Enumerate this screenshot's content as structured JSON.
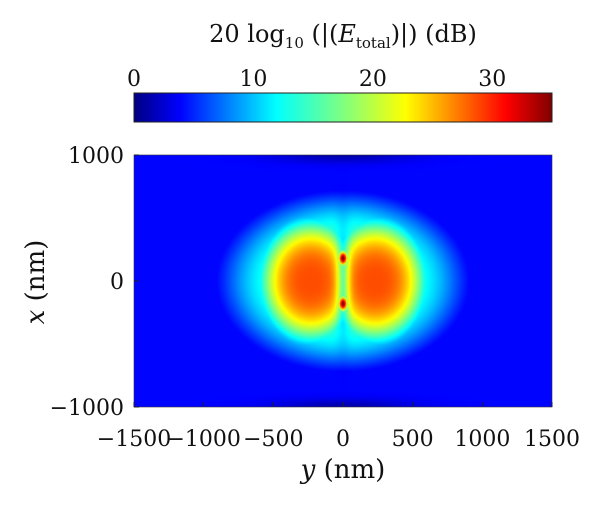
{
  "chart_data": {
    "type": "heatmap",
    "title": "",
    "colorbar": {
      "label": {
        "prefix": "20 log",
        "sub10": "10",
        "mid": " (|(",
        "E": "E",
        "total": "total",
        "suffix": ")|) (dB)"
      },
      "ticks": [
        0,
        10,
        20,
        30
      ],
      "range": [
        0,
        35
      ],
      "colormap": "jet"
    },
    "x_axis": {
      "label_var": "y",
      "label_unit": " (nm)",
      "range": [
        -1500,
        1500
      ],
      "ticks": [
        -1500,
        -1000,
        -500,
        0,
        500,
        1000,
        1500
      ],
      "tick_labels": [
        "−1500",
        "−1000",
        "−500",
        "0",
        "500",
        "1000",
        "1500"
      ]
    },
    "y_axis": {
      "label_var": "x",
      "label_unit": " (nm)",
      "range": [
        -1000,
        1000
      ],
      "ticks": [
        1000,
        0,
        -1000
      ],
      "tick_labels": [
        "1000",
        "0",
        "−1000"
      ]
    },
    "field": {
      "background_db": 4.5,
      "lobes": [
        {
          "center": [
            -230,
            0
          ],
          "peak_db": 28
        },
        {
          "center": [
            230,
            0
          ],
          "peak_db": 28
        }
      ],
      "hotspots": [
        {
          "center": [
            0,
            180
          ],
          "peak_db": 35
        },
        {
          "center": [
            0,
            -180
          ],
          "peak_db": 35
        }
      ],
      "ring_level_db": 12
    }
  }
}
